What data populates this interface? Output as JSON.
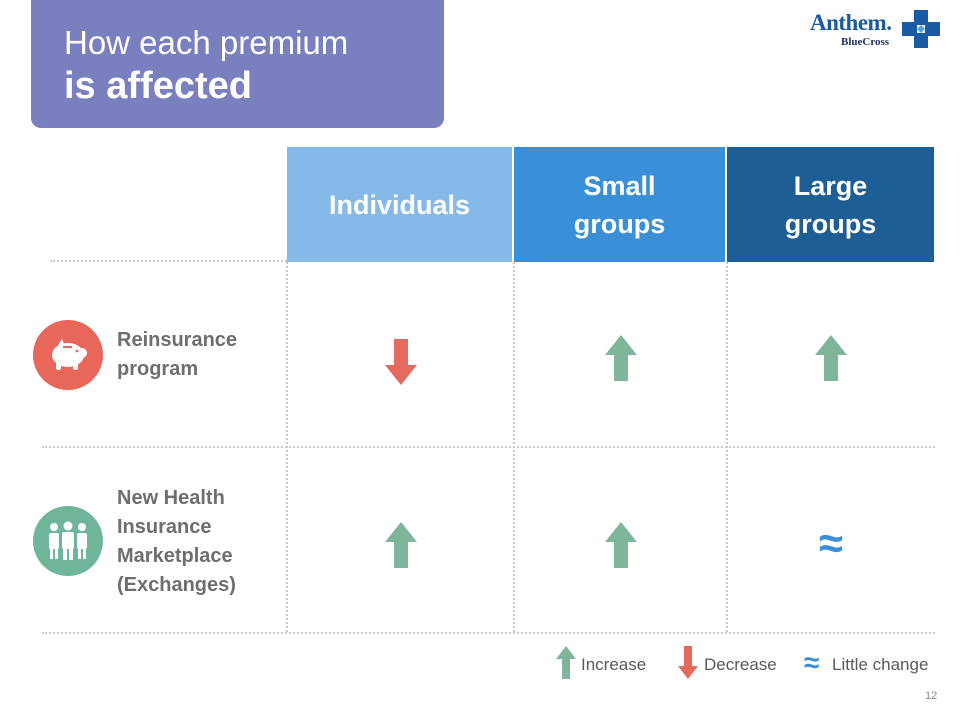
{
  "title": {
    "line1": "How each premium",
    "line2": "is affected"
  },
  "logo": {
    "name": "Anthem.",
    "sub": "BlueCross"
  },
  "columns": [
    {
      "lines": [
        "Individuals"
      ]
    },
    {
      "lines": [
        "Small",
        "groups"
      ]
    },
    {
      "lines": [
        "Large",
        "groups"
      ]
    }
  ],
  "rows": [
    {
      "icon": "piggy-bank-icon",
      "icon_color": "#e8675a",
      "label_lines": [
        "Reinsurance",
        "program"
      ],
      "effects": [
        "decrease",
        "increase",
        "increase"
      ]
    },
    {
      "icon": "people-group-icon",
      "icon_color": "#6fb59a",
      "label_lines": [
        "New Health",
        "Insurance",
        "Marketplace",
        "(Exchanges)"
      ],
      "effects": [
        "increase",
        "increase",
        "little-change"
      ]
    }
  ],
  "effect_symbols": {
    "little-change": "≈"
  },
  "legend": {
    "increase": "Increase",
    "decrease": "Decrease",
    "little_change_symbol": "≈",
    "little_change": "Little change"
  },
  "colors": {
    "increase": "#7fb59b",
    "decrease": "#e36a5c",
    "approx": "#3a8fd9",
    "title_bg": "#7a7fbf"
  },
  "page_number": "12"
}
